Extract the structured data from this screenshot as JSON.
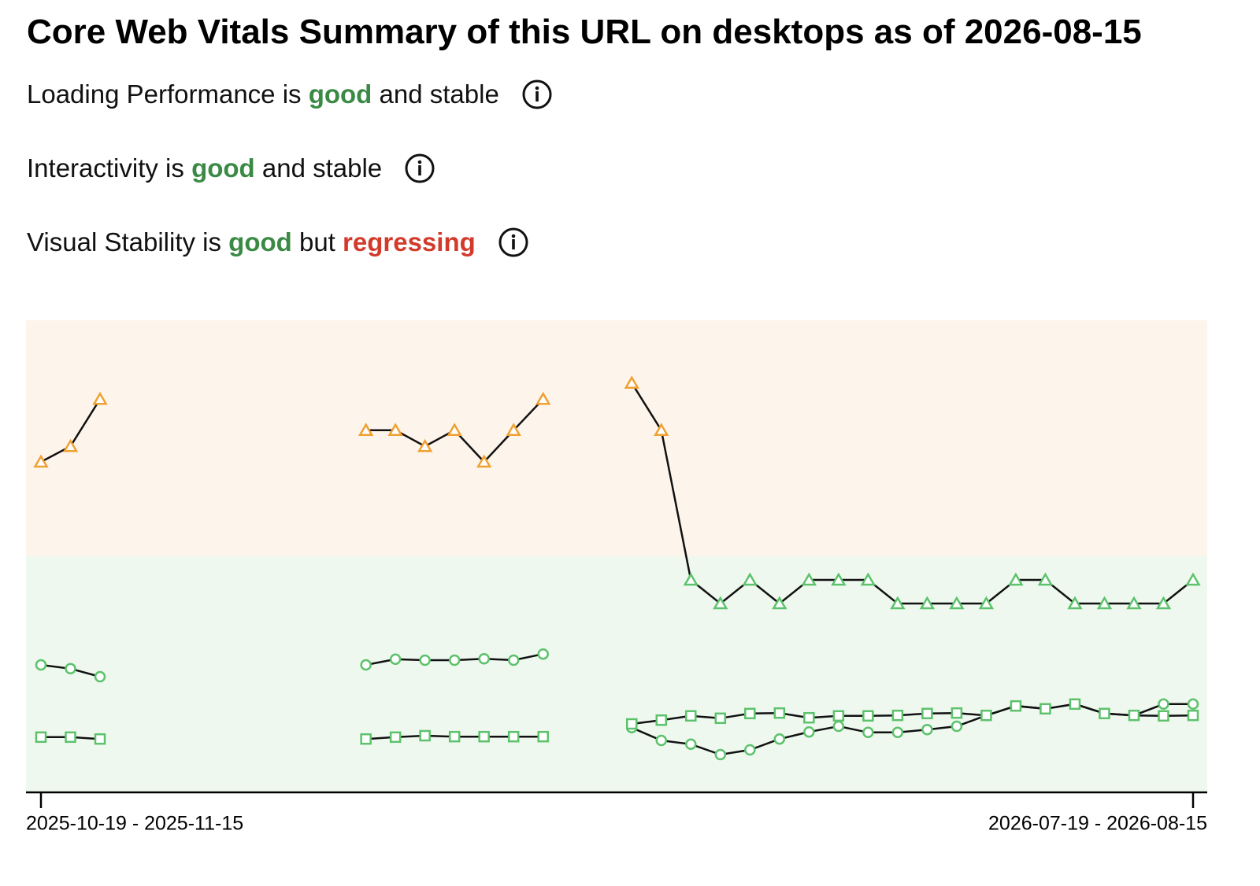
{
  "header": {
    "title": "Core Web Vitals Summary of this URL on desktops as of 2026-08-15"
  },
  "statuses": [
    {
      "parts": [
        {
          "text": "Loading Performance is ",
          "tone": "plain"
        },
        {
          "text": "good",
          "tone": "good"
        },
        {
          "text": " and stable",
          "tone": "plain"
        }
      ]
    },
    {
      "parts": [
        {
          "text": "Interactivity is ",
          "tone": "plain"
        },
        {
          "text": "good",
          "tone": "good"
        },
        {
          "text": " and stable",
          "tone": "plain"
        }
      ]
    },
    {
      "parts": [
        {
          "text": "Visual Stability is ",
          "tone": "plain"
        },
        {
          "text": "good",
          "tone": "good"
        },
        {
          "text": " but ",
          "tone": "plain"
        },
        {
          "text": "regressing",
          "tone": "bad"
        }
      ]
    }
  ],
  "chart_data": {
    "type": "line",
    "categories": [
      "2025-10-19 - 2025-11-15",
      null,
      null,
      null,
      null,
      null,
      null,
      null,
      null,
      null,
      null,
      null,
      null,
      null,
      null,
      null,
      null,
      null,
      null,
      null,
      null,
      null,
      null,
      null,
      null,
      null,
      null,
      null,
      null,
      null,
      null,
      null,
      null,
      null,
      null,
      null,
      null,
      null,
      null,
      "2026-07-19 - 2026-08-15"
    ],
    "ylim": [
      0,
      100
    ],
    "bands": [
      {
        "from": 0,
        "to": 50,
        "color": "#eef8ef",
        "marker_color": "#5cc26b"
      },
      {
        "from": 50,
        "to": 100,
        "color": "#fdf5eb",
        "marker_color": "#f0a030"
      }
    ],
    "line_color": "#111111",
    "series": [
      {
        "marker": "triangle",
        "values": [
          70,
          73.3,
          83.3,
          null,
          null,
          null,
          null,
          null,
          null,
          null,
          null,
          76.7,
          76.7,
          73.3,
          76.7,
          70,
          76.7,
          83.3,
          null,
          null,
          86.7,
          76.7,
          45,
          40,
          45,
          40,
          45,
          45,
          45,
          40,
          40,
          40,
          40,
          45,
          45,
          40,
          40,
          40,
          40,
          45
        ]
      },
      {
        "marker": "circle",
        "values": [
          27,
          26.2,
          24.5,
          null,
          null,
          null,
          null,
          null,
          null,
          null,
          null,
          27,
          28.2,
          28,
          28,
          28.3,
          28,
          29.3,
          null,
          null,
          13.7,
          11,
          10.2,
          8,
          9,
          11.3,
          12.8,
          14,
          12.7,
          12.7,
          13.3,
          14,
          16.3,
          18.3,
          17.7,
          18.7,
          16.7,
          16.3,
          18.7,
          18.7
        ]
      },
      {
        "marker": "square",
        "values": [
          11.7,
          11.7,
          11.3,
          null,
          null,
          null,
          null,
          null,
          null,
          null,
          null,
          11.3,
          11.7,
          12,
          11.8,
          11.8,
          11.8,
          11.8,
          null,
          null,
          14.5,
          15.3,
          16.2,
          15.7,
          16.7,
          16.8,
          15.8,
          16.2,
          16.2,
          16.3,
          16.7,
          16.8,
          16.3,
          18.3,
          17.7,
          18.7,
          16.7,
          16.3,
          16.2,
          16.3
        ]
      }
    ]
  }
}
